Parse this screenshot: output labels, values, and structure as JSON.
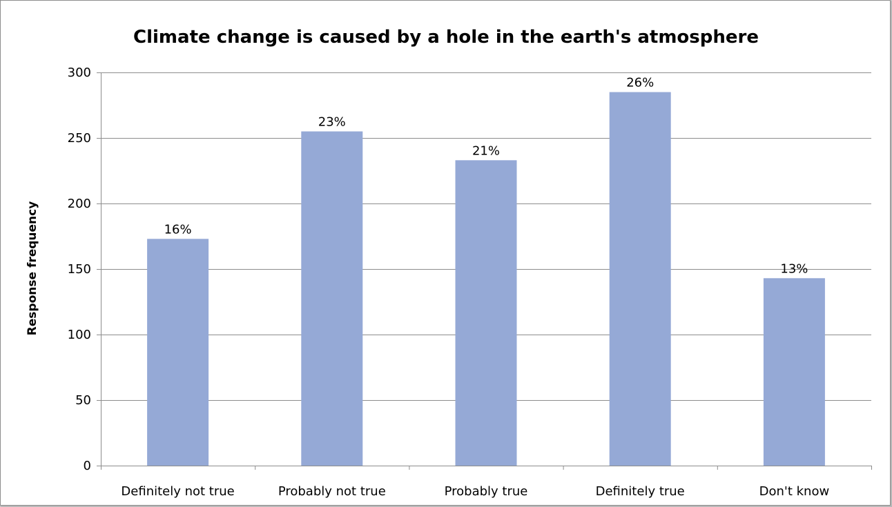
{
  "chart_data": {
    "type": "bar",
    "title": "Climate change is caused by a hole in the earth's atmosphere",
    "xlabel": "",
    "ylabel": "Response frequency",
    "categories": [
      "Definitely not true",
      "Probably not true",
      "Probably true",
      "Definitely true",
      "Don't know"
    ],
    "values": [
      173,
      255,
      233,
      285,
      143
    ],
    "data_labels": [
      "16%",
      "23%",
      "21%",
      "26%",
      "13%"
    ],
    "ylim": [
      0,
      300
    ],
    "yticks": [
      0,
      50,
      100,
      150,
      200,
      250,
      300
    ],
    "grid": true,
    "legend": "none",
    "bar_color": "#95a9d6"
  }
}
